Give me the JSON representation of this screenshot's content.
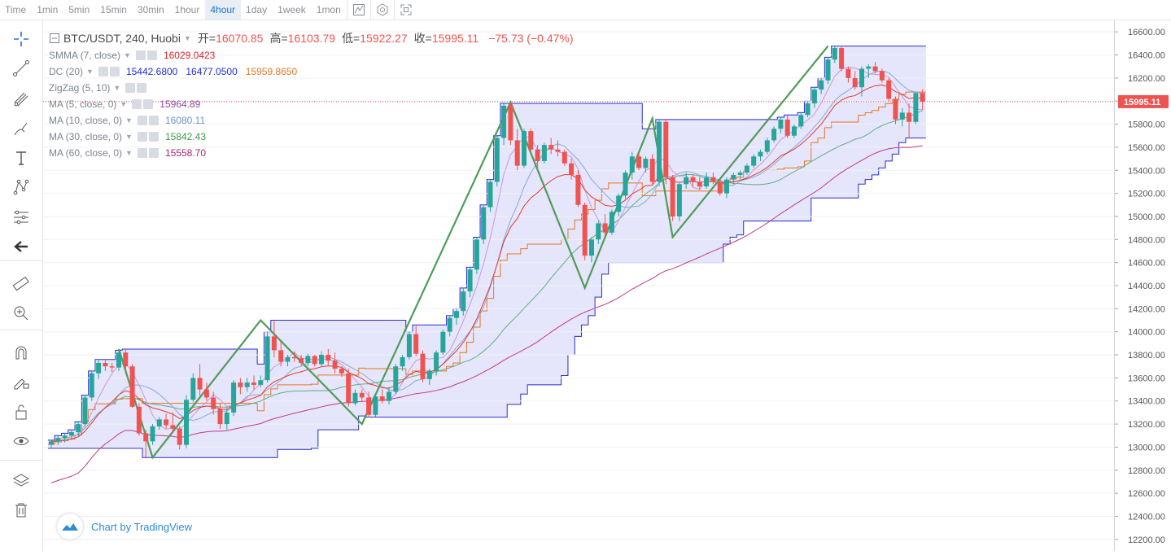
{
  "timeframes": [
    {
      "label": "Time",
      "active": false
    },
    {
      "label": "1min",
      "active": false
    },
    {
      "label": "5min",
      "active": false
    },
    {
      "label": "15min",
      "active": false
    },
    {
      "label": "30min",
      "active": false
    },
    {
      "label": "1hour",
      "active": false
    },
    {
      "label": "4hour",
      "active": true
    },
    {
      "label": "1day",
      "active": false
    },
    {
      "label": "1week",
      "active": false
    },
    {
      "label": "1mon",
      "active": false
    }
  ],
  "toolbar_icons": [
    "chart-style-icon",
    "settings-hex-icon",
    "fullscreen-icon"
  ],
  "sidebar_tools": [
    "crosshair-icon",
    "trend-line-icon",
    "pitchfork-icon",
    "brush-icon",
    "text-icon",
    "pattern-icon",
    "fib-icon",
    "back-arrow-icon",
    "ruler-icon",
    "zoom-in-icon",
    "magnet-icon",
    "lock-pencil-icon",
    "unlock-icon",
    "eye-icon",
    "layers-icon",
    "trash-icon"
  ],
  "legend": {
    "symbol": "BTC/USDT, 240, Huobi",
    "open_label": "开=",
    "open": "16070.85",
    "high_label": "高=",
    "high": "16103.79",
    "low_label": "低=",
    "low": "15922.27",
    "close_label": "收=",
    "close": "15995.11",
    "change": "−75.73 (−0.47%)",
    "indicators": [
      {
        "name": "SMMA (7, close)",
        "values": [
          {
            "v": "16029.0423",
            "color": "#d9242f"
          }
        ]
      },
      {
        "name": "DC (20)",
        "values": [
          {
            "v": "15442.6800",
            "color": "#1d2fd8"
          },
          {
            "v": "16477.0500",
            "color": "#1d2fd8"
          },
          {
            "v": "15959.8650",
            "color": "#e87722"
          }
        ]
      },
      {
        "name": "ZigZag (5, 10)",
        "values": []
      },
      {
        "name": "MA (5, close, 0)",
        "values": [
          {
            "v": "15964.89",
            "color": "#8f4aa3"
          }
        ]
      },
      {
        "name": "MA (10, close, 0)",
        "values": [
          {
            "v": "16080.11",
            "color": "#6d93c9"
          }
        ]
      },
      {
        "name": "MA (30, close, 0)",
        "values": [
          {
            "v": "15842.43",
            "color": "#3f9a4a"
          }
        ]
      },
      {
        "name": "MA (60, close, 0)",
        "values": [
          {
            "v": "15558.70",
            "color": "#a3266e"
          }
        ]
      }
    ]
  },
  "branding": "Chart by TradingView",
  "colors": {
    "up": "#26a69a",
    "down": "#ef5350",
    "dc_fill": "#dcdcfa",
    "dc_line": "#2a2fc9",
    "zigzag": "#4f9b5a",
    "last_price": "#ef5350"
  },
  "chart_data": {
    "type": "candlestick",
    "symbol": "BTC/USDT",
    "interval": "240",
    "ylim": [
      12100,
      16700
    ],
    "y_ticks": [
      12200,
      12400,
      12600,
      12800,
      13000,
      13200,
      13400,
      13600,
      13800,
      14000,
      14200,
      14400,
      14600,
      14800,
      15000,
      15200,
      15400,
      15600,
      15800,
      16000,
      16200,
      16400,
      16600
    ],
    "last_price": "15995.11",
    "candles": [
      [
        13020,
        13060,
        12990,
        13050
      ],
      [
        13050,
        13100,
        13020,
        13080
      ],
      [
        13080,
        13120,
        13040,
        13100
      ],
      [
        13100,
        13150,
        13060,
        13130
      ],
      [
        13130,
        13220,
        13090,
        13200
      ],
      [
        13200,
        13450,
        13180,
        13430
      ],
      [
        13430,
        13660,
        13400,
        13640
      ],
      [
        13640,
        13760,
        13590,
        13730
      ],
      [
        13730,
        13760,
        13660,
        13700
      ],
      [
        13700,
        13730,
        13650,
        13690
      ],
      [
        13690,
        13840,
        13660,
        13820
      ],
      [
        13820,
        13850,
        13640,
        13700
      ],
      [
        13700,
        13720,
        13340,
        13350
      ],
      [
        13350,
        13380,
        13100,
        13120
      ],
      [
        13120,
        13150,
        12910,
        13050
      ],
      [
        13050,
        13200,
        13020,
        13180
      ],
      [
        13180,
        13260,
        13150,
        13240
      ],
      [
        13240,
        13290,
        13160,
        13190
      ],
      [
        13190,
        13300,
        13120,
        13160
      ],
      [
        13160,
        13180,
        12980,
        13020
      ],
      [
        13020,
        13450,
        12990,
        13410
      ],
      [
        13410,
        13640,
        13390,
        13600
      ],
      [
        13600,
        13720,
        13450,
        13500
      ],
      [
        13500,
        13560,
        13400,
        13430
      ],
      [
        13430,
        13480,
        13280,
        13330
      ],
      [
        13330,
        13380,
        13160,
        13200
      ],
      [
        13200,
        13340,
        13150,
        13300
      ],
      [
        13300,
        13580,
        13270,
        13560
      ],
      [
        13560,
        13600,
        13460,
        13520
      ],
      [
        13520,
        13600,
        13480,
        13560
      ],
      [
        13560,
        13620,
        13500,
        13540
      ],
      [
        13540,
        13620,
        13520,
        13580
      ],
      [
        13580,
        14000,
        13560,
        13960
      ],
      [
        13960,
        14100,
        13780,
        13840
      ],
      [
        13840,
        13920,
        13700,
        13740
      ],
      [
        13740,
        13800,
        13700,
        13780
      ],
      [
        13780,
        13830,
        13740,
        13770
      ],
      [
        13770,
        13800,
        13700,
        13730
      ],
      [
        13730,
        13810,
        13700,
        13790
      ],
      [
        13790,
        13800,
        13700,
        13720
      ],
      [
        13720,
        13830,
        13700,
        13800
      ],
      [
        13800,
        13850,
        13710,
        13750
      ],
      [
        13750,
        13820,
        13640,
        13680
      ],
      [
        13680,
        13700,
        13610,
        13640
      ],
      [
        13640,
        13680,
        13350,
        13380
      ],
      [
        13380,
        13500,
        13360,
        13470
      ],
      [
        13470,
        13500,
        13390,
        13430
      ],
      [
        13430,
        13480,
        13260,
        13280
      ],
      [
        13280,
        13460,
        13260,
        13440
      ],
      [
        13440,
        13500,
        13380,
        13400
      ],
      [
        13400,
        13520,
        13370,
        13480
      ],
      [
        13480,
        13720,
        13460,
        13700
      ],
      [
        13700,
        13800,
        13660,
        13780
      ],
      [
        13780,
        14000,
        13760,
        13980
      ],
      [
        13980,
        14060,
        13790,
        13810
      ],
      [
        13810,
        13840,
        13560,
        13590
      ],
      [
        13590,
        13680,
        13540,
        13660
      ],
      [
        13660,
        13840,
        13620,
        13820
      ],
      [
        13820,
        14020,
        13800,
        14000
      ],
      [
        14000,
        14140,
        13960,
        14120
      ],
      [
        14120,
        14200,
        14060,
        14180
      ],
      [
        14180,
        14380,
        14140,
        14350
      ],
      [
        14350,
        14560,
        14300,
        14540
      ],
      [
        14540,
        14820,
        14500,
        14800
      ],
      [
        14800,
        15100,
        14760,
        15080
      ],
      [
        15080,
        15320,
        15040,
        15300
      ],
      [
        15300,
        15700,
        15260,
        15680
      ],
      [
        15680,
        15980,
        15620,
        15960
      ],
      [
        15960,
        15980,
        15620,
        15660
      ],
      [
        15660,
        15760,
        15400,
        15440
      ],
      [
        15440,
        15760,
        15420,
        15740
      ],
      [
        15740,
        15760,
        15560,
        15580
      ],
      [
        15580,
        15620,
        15400,
        15480
      ],
      [
        15480,
        15640,
        15460,
        15620
      ],
      [
        15620,
        15680,
        15540,
        15580
      ],
      [
        15580,
        15660,
        15520,
        15560
      ],
      [
        15560,
        15580,
        15440,
        15460
      ],
      [
        15460,
        15500,
        15320,
        15360
      ],
      [
        15360,
        15400,
        15080,
        15100
      ],
      [
        15100,
        15120,
        14620,
        14660
      ],
      [
        14660,
        14820,
        14600,
        14800
      ],
      [
        14800,
        14960,
        14760,
        14940
      ],
      [
        14940,
        15020,
        14820,
        14860
      ],
      [
        14860,
        15060,
        14840,
        15040
      ],
      [
        15040,
        15200,
        15000,
        15180
      ],
      [
        15180,
        15400,
        15150,
        15380
      ],
      [
        15380,
        15560,
        15320,
        15520
      ],
      [
        15520,
        15560,
        15400,
        15420
      ],
      [
        15420,
        15520,
        15380,
        15500
      ],
      [
        15500,
        15540,
        15280,
        15300
      ],
      [
        15300,
        15840,
        15260,
        15820
      ],
      [
        15820,
        15840,
        15280,
        15340
      ],
      [
        15340,
        15360,
        14960,
        15000
      ],
      [
        15000,
        15300,
        14960,
        15280
      ],
      [
        15280,
        15380,
        15240,
        15340
      ],
      [
        15340,
        15360,
        15260,
        15300
      ],
      [
        15300,
        15340,
        15230,
        15260
      ],
      [
        15260,
        15380,
        15240,
        15340
      ],
      [
        15340,
        15380,
        15280,
        15300
      ],
      [
        15300,
        15320,
        15180,
        15200
      ],
      [
        15200,
        15340,
        15160,
        15320
      ],
      [
        15320,
        15380,
        15280,
        15360
      ],
      [
        15360,
        15400,
        15320,
        15380
      ],
      [
        15380,
        15460,
        15360,
        15440
      ],
      [
        15440,
        15540,
        15420,
        15520
      ],
      [
        15520,
        15580,
        15480,
        15560
      ],
      [
        15560,
        15680,
        15540,
        15660
      ],
      [
        15660,
        15780,
        15640,
        15760
      ],
      [
        15760,
        15860,
        15720,
        15840
      ],
      [
        15840,
        15880,
        15680,
        15700
      ],
      [
        15700,
        15800,
        15680,
        15780
      ],
      [
        15780,
        15900,
        15760,
        15880
      ],
      [
        15880,
        16000,
        15860,
        15980
      ],
      [
        15980,
        16120,
        15940,
        16100
      ],
      [
        16100,
        16200,
        16060,
        16180
      ],
      [
        16180,
        16380,
        16150,
        16360
      ],
      [
        16360,
        16477,
        16330,
        16460
      ],
      [
        16460,
        16470,
        16260,
        16280
      ],
      [
        16280,
        16300,
        16160,
        16200
      ],
      [
        16200,
        16260,
        16100,
        16120
      ],
      [
        16120,
        16300,
        16040,
        16280
      ],
      [
        16280,
        16320,
        16200,
        16300
      ],
      [
        16300,
        16340,
        16240,
        16260
      ],
      [
        16260,
        16280,
        16160,
        16180
      ],
      [
        16180,
        16200,
        16000,
        16020
      ],
      [
        16020,
        16040,
        15800,
        15840
      ],
      [
        15840,
        15940,
        15780,
        15900
      ],
      [
        15900,
        15980,
        15680,
        15820
      ],
      [
        15820,
        16080,
        15800,
        16070
      ],
      [
        16070,
        16103.79,
        15922.27,
        15995.11
      ]
    ]
  }
}
